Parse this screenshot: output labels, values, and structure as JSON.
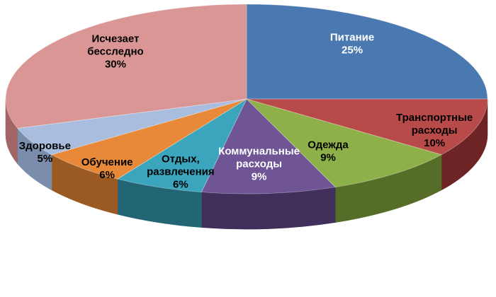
{
  "chart_data": {
    "type": "pie",
    "style": "3d",
    "title": "",
    "legend": "none",
    "slices": [
      {
        "label": [
          "Питание"
        ],
        "value": 25,
        "value_label": "25%",
        "color": "#4a78b1",
        "side_color": "#2d4d76",
        "label_color": "#ffffff"
      },
      {
        "label": [
          "Транспортные",
          "расходы"
        ],
        "value": 10,
        "value_label": "10%",
        "color": "#b94a4a",
        "side_color": "#6e2424",
        "label_color": "#000000"
      },
      {
        "label": [
          "Одежда"
        ],
        "value": 9,
        "value_label": "9%",
        "color": "#8eb049",
        "side_color": "#566d27",
        "label_color": "#000000"
      },
      {
        "label": [
          "Коммунальные",
          "расходы"
        ],
        "value": 9,
        "value_label": "9%",
        "color": "#6f5596",
        "side_color": "#402e5b",
        "label_color": "#ffffff"
      },
      {
        "label": [
          "Отдых,",
          "развлечения"
        ],
        "value": 6,
        "value_label": "6%",
        "color": "#3aa5bd",
        "side_color": "#226575",
        "label_color": "#000000"
      },
      {
        "label": [
          "Обучение"
        ],
        "value": 6,
        "value_label": "6%",
        "color": "#e8893a",
        "side_color": "#9a5a22",
        "label_color": "#000000"
      },
      {
        "label": [
          "Здоровье"
        ],
        "value": 5,
        "value_label": "5%",
        "color": "#a9bedf",
        "side_color": "#7a8dad",
        "label_color": "#000000"
      },
      {
        "label": [
          "Исчезает",
          "бесследно"
        ],
        "value": 30,
        "value_label": "30%",
        "color": "#d99694",
        "side_color": "#a06564",
        "label_color": "#000000"
      }
    ]
  }
}
